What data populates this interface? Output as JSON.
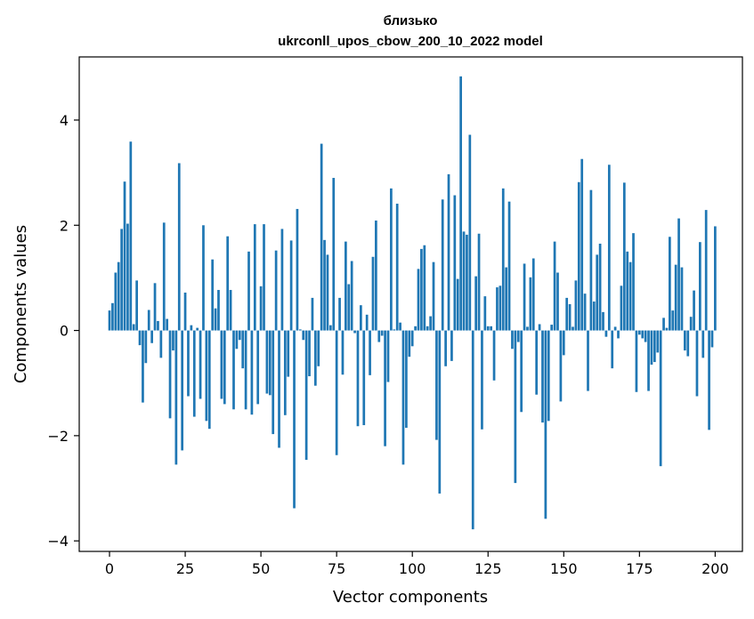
{
  "chart_data": {
    "type": "bar",
    "title_line1": "близько",
    "title_line2": "ukrconll_upos_cbow_200_10_2022 model",
    "xlabel": "Vector components",
    "ylabel": "Components values",
    "xlim": [
      -10,
      209
    ],
    "ylim": [
      -4.2,
      5.2
    ],
    "x_ticks": [
      0,
      25,
      50,
      75,
      100,
      125,
      150,
      175,
      200
    ],
    "y_ticks": [
      -4,
      -2,
      0,
      2,
      4
    ],
    "x_tick_labels": [
      "0",
      "25",
      "50",
      "75",
      "100",
      "125",
      "150",
      "175",
      "200"
    ],
    "y_tick_labels": [
      "−4",
      "−2",
      "0",
      "2",
      "4"
    ],
    "bar_color": "#1f77b4",
    "values": [
      0.38,
      0.52,
      1.1,
      1.3,
      1.93,
      2.83,
      2.03,
      3.59,
      0.12,
      0.95,
      -0.28,
      -1.37,
      -0.62,
      0.39,
      -0.24,
      0.9,
      0.18,
      -0.52,
      2.05,
      0.22,
      -1.67,
      -0.38,
      -2.55,
      3.18,
      -2.28,
      0.72,
      -1.25,
      0.1,
      -1.64,
      0.05,
      -1.3,
      2.0,
      -1.72,
      -1.87,
      1.35,
      0.42,
      0.77,
      -1.3,
      -1.4,
      1.79,
      0.77,
      -1.5,
      -0.35,
      -0.18,
      -0.72,
      -1.5,
      1.5,
      -1.6,
      2.02,
      -1.4,
      0.84,
      2.02,
      -1.2,
      -1.23,
      -1.97,
      1.52,
      -2.23,
      1.93,
      -1.61,
      -0.88,
      1.71,
      -3.38,
      2.31,
      0.02,
      -0.18,
      -2.46,
      -0.87,
      0.62,
      -1.05,
      -0.68,
      3.55,
      1.72,
      1.44,
      0.1,
      2.9,
      -2.37,
      0.62,
      -0.84,
      1.69,
      0.88,
      1.32,
      -0.05,
      -1.82,
      0.48,
      -1.8,
      0.3,
      -0.85,
      1.4,
      2.09,
      -0.22,
      -0.1,
      -2.2,
      -0.98,
      2.7,
      0.02,
      2.41,
      0.15,
      -2.55,
      -1.85,
      -0.5,
      -0.3,
      0.08,
      1.17,
      1.55,
      1.62,
      0.08,
      0.27,
      1.3,
      -2.08,
      -3.1,
      2.49,
      -0.68,
      2.97,
      -0.58,
      2.57,
      0.98,
      4.83,
      1.88,
      1.82,
      3.72,
      -3.78,
      1.03,
      1.84,
      -1.88,
      0.65,
      0.08,
      0.08,
      -0.95,
      0.82,
      0.85,
      2.7,
      1.2,
      2.45,
      -0.35,
      -2.9,
      -0.22,
      -1.55,
      1.27,
      0.07,
      1.01,
      1.37,
      -1.22,
      0.12,
      -1.75,
      -3.58,
      -1.72,
      0.11,
      1.69,
      1.1,
      -1.35,
      -0.47,
      0.62,
      0.5,
      0.07,
      0.95,
      2.82,
      3.26,
      0.7,
      -1.15,
      2.67,
      0.55,
      1.44,
      1.65,
      0.35,
      -0.12,
      3.15,
      -0.72,
      0.07,
      -0.15,
      0.85,
      2.81,
      1.5,
      1.3,
      1.85,
      -1.17,
      -0.08,
      -0.15,
      -0.22,
      -1.15,
      -0.65,
      -0.6,
      -0.42,
      -2.58,
      0.24,
      0.05,
      1.78,
      0.38,
      1.25,
      2.13,
      1.2,
      -0.38,
      -0.49,
      0.26,
      0.76,
      -1.25,
      1.68,
      -0.52,
      2.29,
      -1.89,
      -0.32,
      1.98
    ]
  }
}
